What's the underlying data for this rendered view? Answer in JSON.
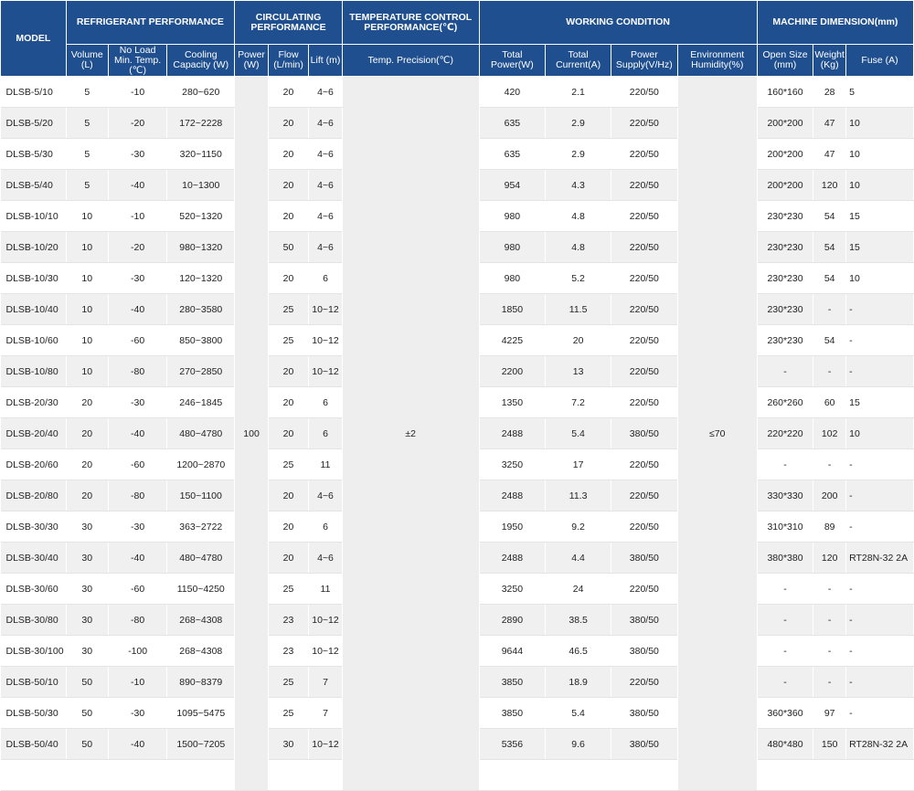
{
  "header": {
    "model": "MODEL",
    "refrigerant": "REFRIGERANT PERFORMANCE",
    "circulating": "CIRCULATING PERFORMANCE",
    "temp_control": "TEMPERATURE CONTROL PERFORMANCE(℃)",
    "working": "WORKING CONDITION",
    "dimension": "MACHINE DIMENSION(mm)",
    "sub": {
      "volume": "Volume (L)",
      "min_temp": "No Load Min. Temp. (℃)",
      "cooling": "Cooling Capacity (W)",
      "power": "Power (W)",
      "flow": "Flow (L/min)",
      "lift": "Lift (m)",
      "precision": "Temp. Precision(℃)",
      "total_power": "Total Power(W)",
      "total_current": "Total Current(A)",
      "supply": "Power Supply(V/Hz)",
      "humidity": "Environment Humidity(%)",
      "open_size": "Open Size (mm)",
      "weight": "Weight (Kg)",
      "fuse": "Fuse (A)"
    }
  },
  "merged": {
    "circ_power": "100",
    "precision": "±2",
    "humidity": "≤70"
  },
  "rows": [
    [
      "DLSB-5/10",
      "5",
      "-10",
      "280~620",
      "20",
      "4~6",
      "420",
      "2.1",
      "220/50",
      "160*160",
      "28",
      "5"
    ],
    [
      "DLSB-5/20",
      "5",
      "-20",
      "172~2228",
      "20",
      "4~6",
      "635",
      "2.9",
      "220/50",
      "200*200",
      "47",
      "10"
    ],
    [
      "DLSB-5/30",
      "5",
      "-30",
      "320~1150",
      "20",
      "4~6",
      "635",
      "2.9",
      "220/50",
      "200*200",
      "47",
      "10"
    ],
    [
      "DLSB-5/40",
      "5",
      "-40",
      "10~1300",
      "20",
      "4~6",
      "954",
      "4.3",
      "220/50",
      "200*200",
      "120",
      "10"
    ],
    [
      "DLSB-10/10",
      "10",
      "-10",
      "520~1320",
      "20",
      "4~6",
      "980",
      "4.8",
      "220/50",
      "230*230",
      "54",
      "15"
    ],
    [
      "DLSB-10/20",
      "10",
      "-20",
      "980~1320",
      "50",
      "4~6",
      "980",
      "4.8",
      "220/50",
      "230*230",
      "54",
      "15"
    ],
    [
      "DLSB-10/30",
      "10",
      "-30",
      "120~1320",
      "20",
      "6",
      "980",
      "5.2",
      "220/50",
      "230*230",
      "54",
      "10"
    ],
    [
      "DLSB-10/40",
      "10",
      "-40",
      "280~3580",
      "25",
      "10~12",
      "1850",
      "11.5",
      "220/50",
      "230*230",
      "-",
      "-"
    ],
    [
      "DLSB-10/60",
      "10",
      "-60",
      "850~3800",
      "25",
      "10~12",
      "4225",
      "20",
      "220/50",
      "230*230",
      "54",
      "-"
    ],
    [
      "DLSB-10/80",
      "10",
      "-80",
      "270~2850",
      "20",
      "10~12",
      "2200",
      "13",
      "220/50",
      "-",
      "-",
      "-"
    ],
    [
      "DLSB-20/30",
      "20",
      "-30",
      "246~1845",
      "20",
      "6",
      "1350",
      "7.2",
      "220/50",
      "260*260",
      "60",
      "15"
    ],
    [
      "DLSB-20/40",
      "20",
      "-40",
      "480~4780",
      "20",
      "6",
      "2488",
      "5.4",
      "380/50",
      "220*220",
      "102",
      "10"
    ],
    [
      "DLSB-20/60",
      "20",
      "-60",
      "1200~2870",
      "25",
      "11",
      "3250",
      "17",
      "220/50",
      "-",
      "-",
      "-"
    ],
    [
      "DLSB-20/80",
      "20",
      "-80",
      "150~1100",
      "20",
      "4~6",
      "2488",
      "11.3",
      "220/50",
      "330*330",
      "200",
      "-"
    ],
    [
      "DLSB-30/30",
      "30",
      "-30",
      "363~2722",
      "20",
      "6",
      "1950",
      "9.2",
      "220/50",
      "310*310",
      "89",
      "-"
    ],
    [
      "DLSB-30/40",
      "30",
      "-40",
      "480~4780",
      "20",
      "4~6",
      "2488",
      "4.4",
      "380/50",
      "380*380",
      "120",
      "RT28N-32  2A"
    ],
    [
      "DLSB-30/60",
      "30",
      "-60",
      "1150~4250",
      "25",
      "11",
      "3250",
      "24",
      "220/50",
      "-",
      "-",
      "-"
    ],
    [
      "DLSB-30/80",
      "30",
      "-80",
      "268~4308",
      "23",
      "10~12",
      "2890",
      "38.5",
      "380/50",
      "-",
      "-",
      "-"
    ],
    [
      "DLSB-30/100",
      "30",
      "-100",
      "268~4308",
      "23",
      "10~12",
      "9644",
      "46.5",
      "380/50",
      "-",
      "-",
      "-"
    ],
    [
      "DLSB-50/10",
      "50",
      "-10",
      "890~8379",
      "25",
      "7",
      "3850",
      "18.9",
      "220/50",
      "-",
      "-",
      "-"
    ],
    [
      "DLSB-50/30",
      "50",
      "-30",
      "1095~5475",
      "25",
      "7",
      "3850",
      "5.4",
      "380/50",
      "360*360",
      "97",
      "-"
    ],
    [
      "DLSB-50/40",
      "50",
      "-40",
      "1500~7205",
      "30",
      "10~12",
      "5356",
      "9.6",
      "380/50",
      "480*480",
      "150",
      "RT28N-32  2A"
    ],
    [
      "",
      "",
      "",
      "",
      "",
      "",
      "",
      "",
      "",
      "",
      "",
      ""
    ]
  ]
}
